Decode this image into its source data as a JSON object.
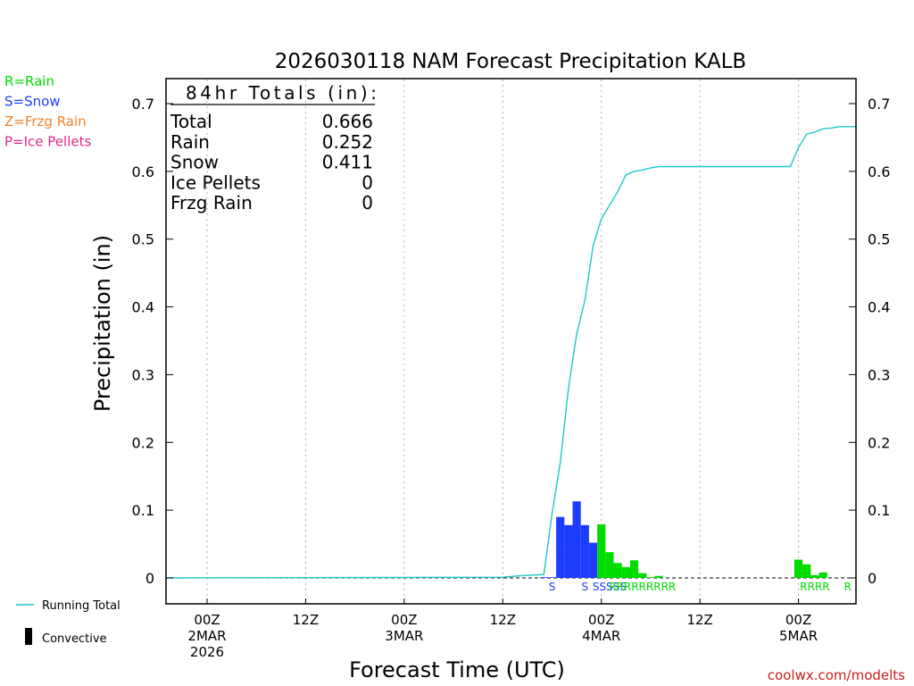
{
  "colors": {
    "rain": "#00dc00",
    "snow": "#1e3cff",
    "frzg_rain": "#f08228",
    "ice_pellets": "#e0288c",
    "running_total": "#1ec8c8",
    "convective": "#000000",
    "credit": "#c81e1e"
  },
  "legend_ptype": [
    {
      "label": "R=Rain",
      "color": "#00dc00"
    },
    {
      "label": "S=Snow",
      "color": "#1e3cff"
    },
    {
      "label": "Z=Frzg Rain",
      "color": "#f08228"
    },
    {
      "label": "P=Ice Pellets",
      "color": "#e0288c"
    }
  ],
  "legend_bottom": {
    "running_total": "Running Total",
    "convective": "Convective"
  },
  "totals": {
    "header": "84hr Totals (in):",
    "rows": [
      {
        "label": "Total",
        "value": "0.666"
      },
      {
        "label": "Rain",
        "value": "0.252"
      },
      {
        "label": "Snow",
        "value": "0.411"
      },
      {
        "label": "Ice Pellets",
        "value": "0"
      },
      {
        "label": "Frzg Rain",
        "value": "0"
      }
    ]
  },
  "credit": "coolwx.com/modelts",
  "chart_data": {
    "type": "bar",
    "title": "2026030118 NAM Forecast Precipitation KALB",
    "xlabel": "Forecast Time (UTC)",
    "ylabel": "Precipitation (in)",
    "ylim": [
      0,
      0.7
    ],
    "xlim": [
      -5,
      79
    ],
    "y_ticks": [
      "0",
      "0.1",
      "0.2",
      "0.3",
      "0.4",
      "0.5",
      "0.6",
      "0.7"
    ],
    "y_tick_values": [
      0,
      0.1,
      0.2,
      0.3,
      0.4,
      0.5,
      0.6,
      0.7
    ],
    "x_ticks": [
      {
        "hour": 0,
        "lines": [
          "00Z",
          "2MAR",
          "2026"
        ]
      },
      {
        "hour": 12,
        "lines": [
          "12Z"
        ]
      },
      {
        "hour": 24,
        "lines": [
          "00Z",
          "3MAR"
        ]
      },
      {
        "hour": 36,
        "lines": [
          "12Z"
        ]
      },
      {
        "hour": 48,
        "lines": [
          "00Z",
          "4MAR"
        ]
      },
      {
        "hour": 60,
        "lines": [
          "12Z"
        ]
      },
      {
        "hour": 72,
        "lines": [
          "00Z",
          "5MAR"
        ]
      }
    ],
    "grid": true,
    "bars": [
      {
        "hour": 41,
        "value": 0.001,
        "type": "S"
      },
      {
        "hour": 42,
        "value": 0.001,
        "type": "S"
      },
      {
        "hour": 43,
        "value": 0.001,
        "type": "S"
      },
      {
        "hour": 44,
        "value": 0.001,
        "type": "S"
      },
      {
        "hour": 45,
        "value": 0.002,
        "type": "S"
      },
      {
        "hour": 43,
        "value": 0.09,
        "type": "S"
      },
      {
        "hour": 44,
        "value": 0.078,
        "type": "S"
      },
      {
        "hour": 45,
        "value": 0.113,
        "type": "S"
      },
      {
        "hour": 46,
        "value": 0.078,
        "type": "S"
      },
      {
        "hour": 47,
        "value": 0.052,
        "type": "S"
      },
      {
        "hour": 48,
        "value": 0.079,
        "type": "R"
      },
      {
        "hour": 49,
        "value": 0.038,
        "type": "R"
      },
      {
        "hour": 50,
        "value": 0.022,
        "type": "R"
      },
      {
        "hour": 51,
        "value": 0.016,
        "type": "R"
      },
      {
        "hour": 52,
        "value": 0.026,
        "type": "R"
      },
      {
        "hour": 53,
        "value": 0.007,
        "type": "R"
      },
      {
        "hour": 54,
        "value": 0.001,
        "type": "R"
      },
      {
        "hour": 55,
        "value": 0.003,
        "type": "R"
      },
      {
        "hour": 72,
        "value": 0.027,
        "type": "R"
      },
      {
        "hour": 73,
        "value": 0.02,
        "type": "R"
      },
      {
        "hour": 74,
        "value": 0.004,
        "type": "R"
      },
      {
        "hour": 75,
        "value": 0.008,
        "type": "R"
      }
    ],
    "running_total": {
      "name": "Running Total",
      "x": [
        -5,
        36,
        38,
        41,
        42,
        43,
        44,
        45,
        46,
        47,
        48,
        49,
        50,
        51,
        52,
        53,
        54,
        55,
        56,
        60,
        65,
        70,
        71,
        72,
        73,
        74,
        75,
        76,
        77,
        78,
        79
      ],
      "y": [
        0,
        0.001,
        0.003,
        0.005,
        0.095,
        0.17,
        0.28,
        0.36,
        0.41,
        0.49,
        0.53,
        0.55,
        0.57,
        0.595,
        0.6,
        0.602,
        0.605,
        0.607,
        0.607,
        0.607,
        0.607,
        0.607,
        0.607,
        0.635,
        0.655,
        0.658,
        0.663,
        0.664,
        0.666,
        0.666,
        0.666
      ]
    },
    "ptype_labels": [
      {
        "hour": 42,
        "text": "S",
        "type": "S"
      },
      {
        "hour": 46,
        "text": "S",
        "type": "S"
      },
      {
        "hour": 49,
        "text": "SSSSS",
        "type": "S"
      },
      {
        "hour": 53,
        "text": "RRRRRRRRR",
        "type": "R"
      },
      {
        "hour": 74,
        "text": "RRRR",
        "type": "R"
      },
      {
        "hour": 78,
        "text": "R",
        "type": "R"
      }
    ]
  }
}
